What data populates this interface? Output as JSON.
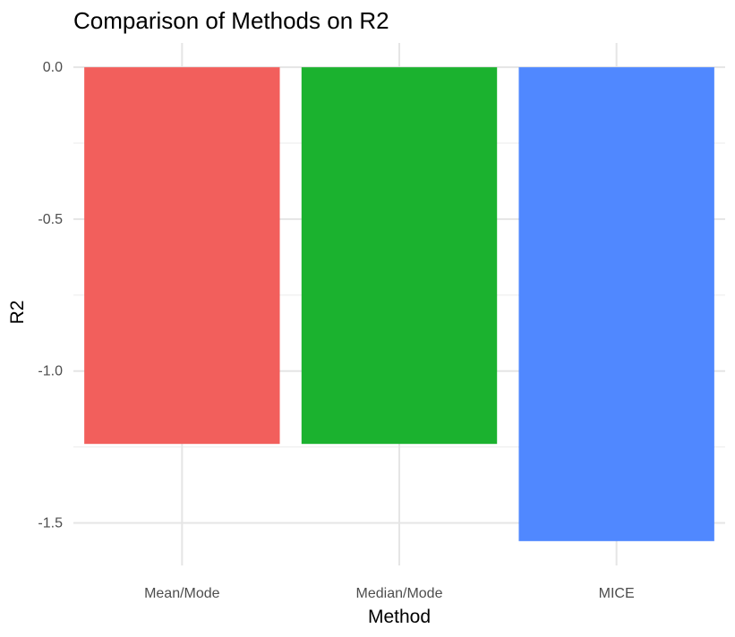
{
  "chart_data": {
    "type": "bar",
    "title": "Comparison of Methods on R2",
    "xlabel": "Method",
    "ylabel": "R2",
    "categories": [
      "Mean/Mode",
      "Median/Mode",
      "MICE"
    ],
    "values": [
      -1.24,
      -1.24,
      -1.56
    ],
    "colors": [
      "#F25F5C",
      "#1BB22F",
      "#5088FF"
    ],
    "ylim": [
      -1.64,
      0.08
    ],
    "yticks": [
      0.0,
      -0.5,
      -1.0,
      -1.5
    ],
    "ytick_labels": [
      "0.0",
      "-0.5",
      "-1.0",
      "-1.5"
    ],
    "grid": true,
    "legend": "none"
  }
}
